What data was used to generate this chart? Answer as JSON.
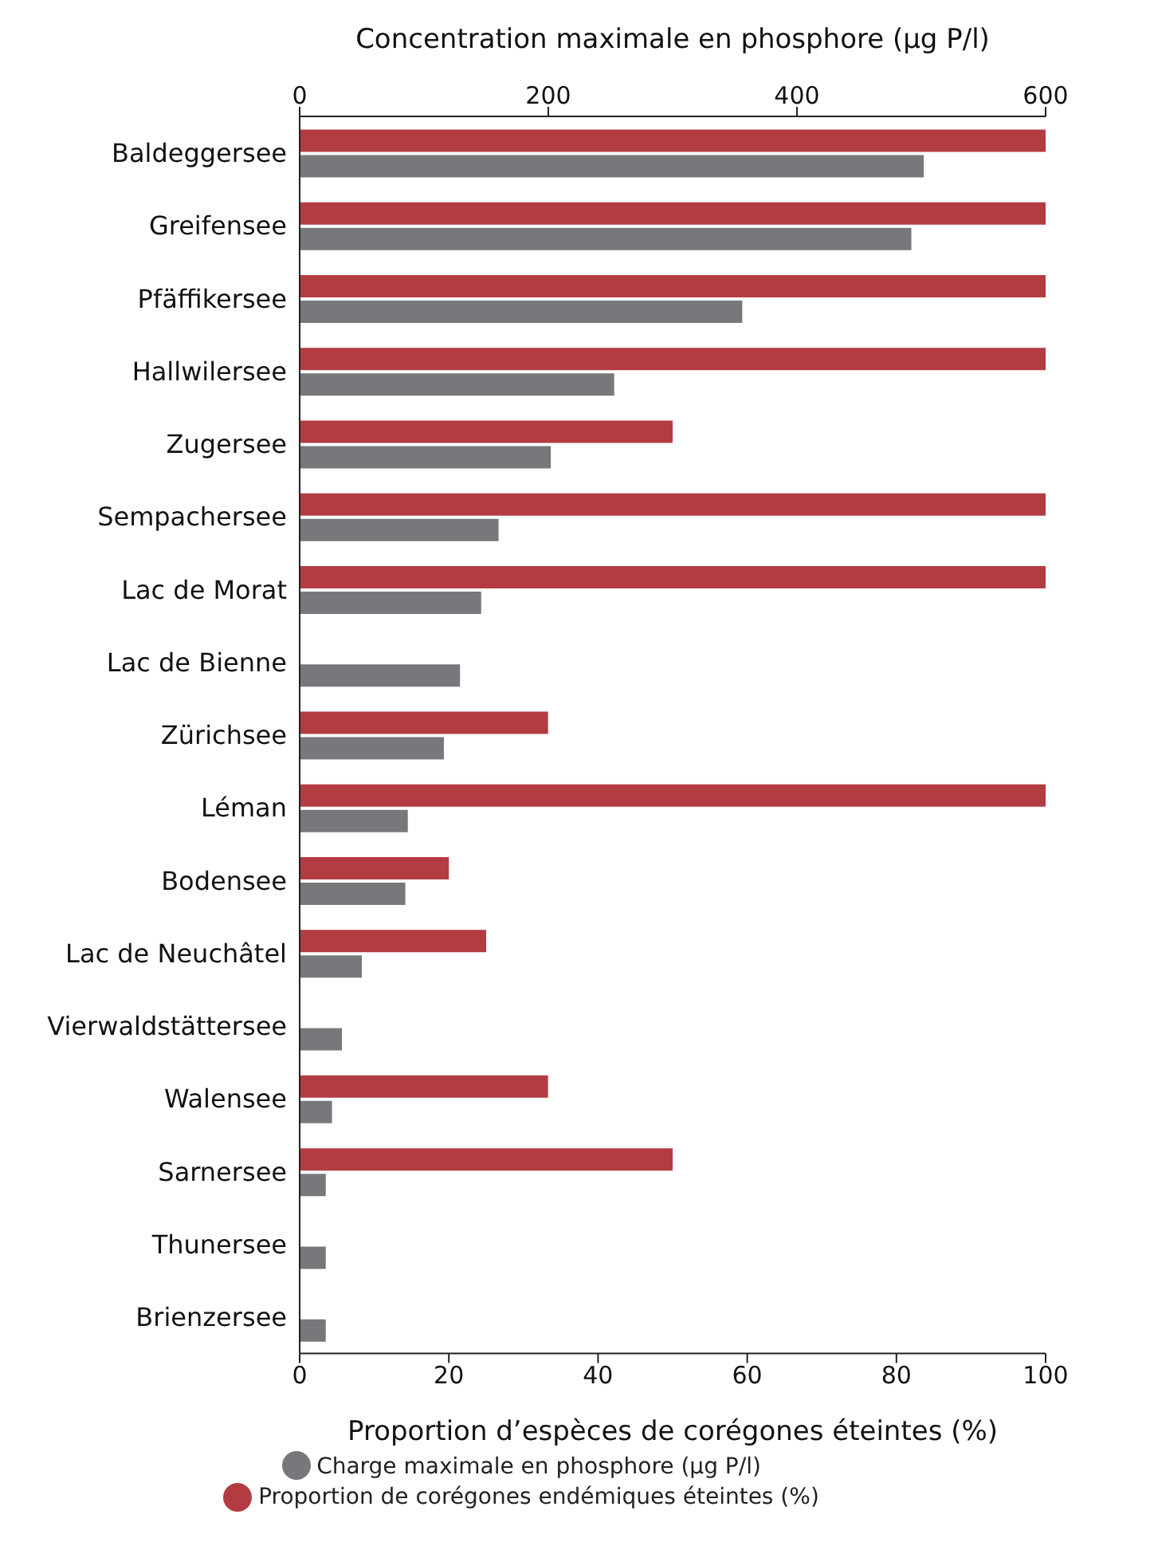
{
  "chart_data": {
    "type": "bar",
    "orientation": "horizontal",
    "xlabel": "Proportion d’espèces de corégones éteintes (%)",
    "x2label": "Concentration maximale en phosphore (µg P/l)",
    "categories": [
      "Baldeggersee",
      "Greifensee",
      "Pfäffikersee",
      "Hallwilersee",
      "Zugersee",
      "Sempachersee",
      "Lac de Morat",
      "Lac de Bienne",
      "Zürichsee",
      "Léman",
      "Bodensee",
      "Lac de Neuchâtel",
      "Vierwaldstättersee",
      "Walensee",
      "Sarnersee",
      "Thunersee",
      "Brienzersee"
    ],
    "series": [
      {
        "name": "Proportion de corégones endémiques éteintes (%)",
        "color": "#b33c42",
        "values": [
          100,
          100,
          100,
          100,
          50,
          100,
          100,
          null,
          33.3,
          100,
          20,
          25,
          null,
          33.3,
          50,
          null,
          null
        ]
      },
      {
        "name": "Charge maximale en phosphore (µg P/l)",
        "color": "#77787b",
        "axis": "x2",
        "values": [
          502,
          492,
          356,
          253,
          202,
          160,
          146,
          129,
          116,
          87,
          85,
          50,
          34,
          26,
          21,
          21,
          21
        ]
      }
    ],
    "xlim": [
      0,
      100
    ],
    "xticks": [
      0,
      20,
      40,
      60,
      80,
      100
    ],
    "x2lim": [
      0,
      600
    ],
    "x2ticks": [
      0,
      200,
      400,
      600
    ],
    "grid": false,
    "legend": "bottom"
  }
}
